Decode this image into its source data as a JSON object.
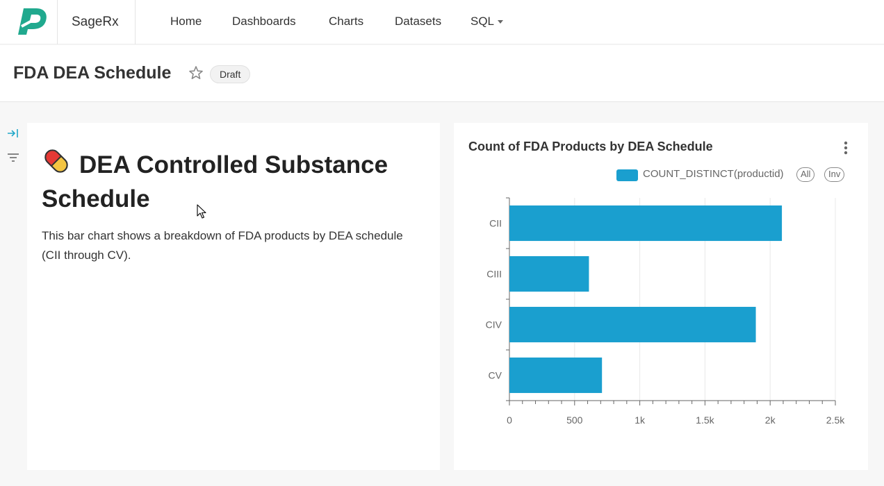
{
  "app": {
    "brand": "SageRx",
    "nav": [
      "Home",
      "Dashboards",
      "Charts",
      "Datasets",
      "SQL"
    ]
  },
  "dashboard": {
    "title": "FDA DEA Schedule",
    "status": "Draft"
  },
  "markdown": {
    "heading": "DEA Controlled Substance Schedule",
    "body": "This bar chart shows a breakdown of FDA products by DEA schedule (CII through CV)."
  },
  "chart": {
    "title": "Count of FDA Products by DEA Schedule",
    "legend_label": "COUNT_DISTINCT(productid)",
    "legend_all": "All",
    "legend_inv": "Inv"
  },
  "chart_data": {
    "type": "bar",
    "orientation": "horizontal",
    "title": "Count of FDA Products by DEA Schedule",
    "categories": [
      "CII",
      "CIII",
      "CIV",
      "CV"
    ],
    "series": [
      {
        "name": "COUNT_DISTINCT(productid)",
        "values": [
          2090,
          610,
          1890,
          710
        ],
        "color": "#1a9fcf"
      }
    ],
    "xlim": [
      0,
      2500
    ],
    "xticks": [
      0,
      500,
      1000,
      1500,
      2000,
      2500
    ],
    "xtick_labels": [
      "0",
      "500",
      "1k",
      "1.5k",
      "2k",
      "2.5k"
    ],
    "grid": true,
    "legend_position": "top-right"
  },
  "colors": {
    "accent": "#20a7c9",
    "logo": "#20a98e",
    "bar": "#1a9fcf"
  }
}
